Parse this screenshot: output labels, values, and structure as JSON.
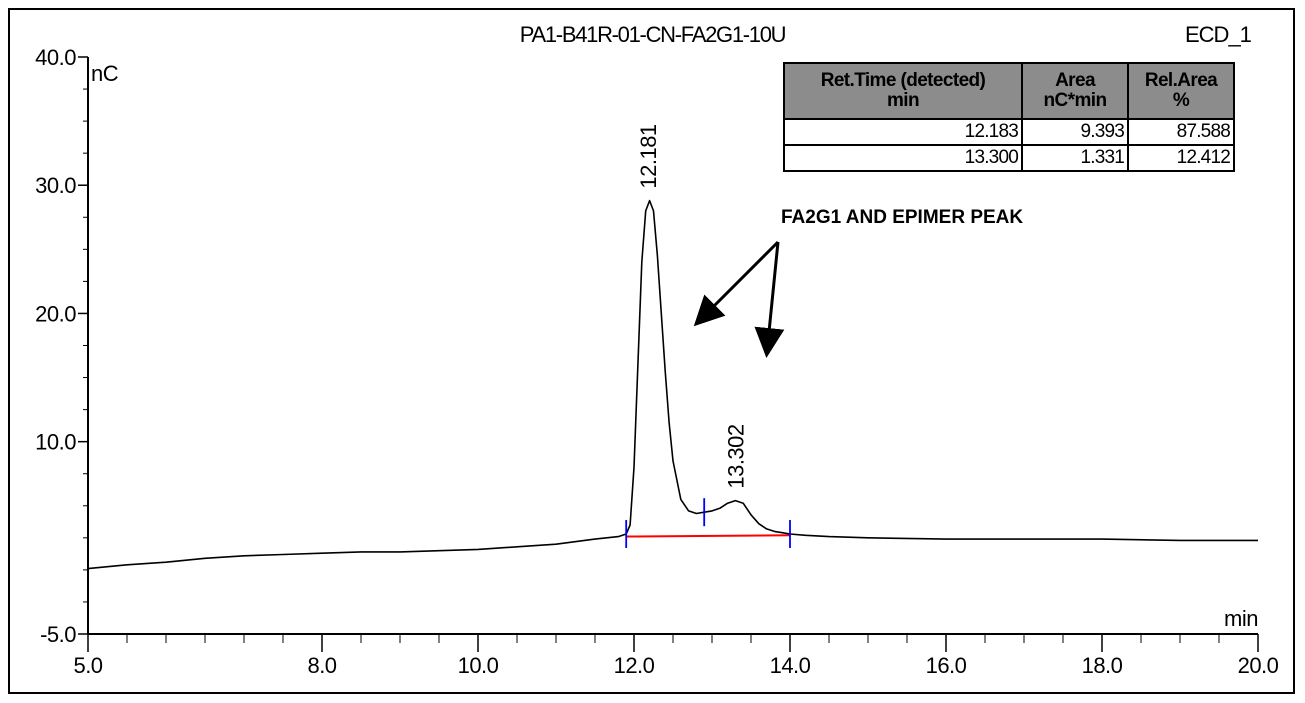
{
  "chart_data": {
    "type": "line",
    "title": "PA1-B41R-01-CN-FA2G1-10U",
    "channel": "ECD_1",
    "xlabel": "min",
    "ylabel": "nC",
    "xlim": [
      5.0,
      20.0
    ],
    "ylim": [
      -5.0,
      40.0
    ],
    "x_ticks": [
      5.0,
      8.0,
      10.0,
      12.0,
      14.0,
      16.0,
      18.0,
      20.0
    ],
    "x_tick_labels": [
      "5.0",
      "8.0",
      "10.0",
      "12.0",
      "14.0",
      "16.0",
      "18.0",
      "20.0"
    ],
    "y_ticks": [
      -5.0,
      10.0,
      20.0,
      30.0,
      40.0
    ],
    "y_tick_labels": [
      "-5.0",
      "10.0",
      "20.0",
      "30.0",
      "40.0"
    ],
    "grid": false,
    "series": [
      {
        "color": "#000000",
        "x": [
          5.0,
          5.5,
          6.0,
          6.5,
          7.0,
          7.5,
          8.0,
          8.5,
          9.0,
          9.5,
          10.0,
          10.5,
          11.0,
          11.5,
          11.8,
          11.9,
          11.95,
          12.0,
          12.05,
          12.1,
          12.15,
          12.2,
          12.25,
          12.3,
          12.35,
          12.4,
          12.45,
          12.5,
          12.6,
          12.7,
          12.8,
          12.9,
          13.0,
          13.1,
          13.2,
          13.3,
          13.4,
          13.5,
          13.6,
          13.7,
          13.8,
          13.9,
          14.0,
          14.2,
          14.5,
          15.0,
          16.0,
          17.0,
          18.0,
          19.0,
          20.0
        ],
        "y": [
          0.1,
          0.4,
          0.6,
          0.9,
          1.1,
          1.2,
          1.3,
          1.4,
          1.4,
          1.5,
          1.6,
          1.8,
          2.0,
          2.4,
          2.6,
          2.8,
          3.5,
          8.0,
          16.0,
          24.0,
          28.0,
          28.8,
          28.0,
          24.5,
          20.0,
          15.5,
          11.5,
          8.5,
          5.5,
          4.6,
          4.4,
          4.5,
          4.6,
          4.8,
          5.2,
          5.4,
          5.2,
          4.3,
          3.6,
          3.2,
          3.0,
          2.9,
          2.8,
          2.7,
          2.6,
          2.5,
          2.4,
          2.4,
          2.4,
          2.3,
          2.3
        ]
      }
    ],
    "peak_labels": [
      {
        "label": "12.181",
        "x": 12.181,
        "y": 28.8
      },
      {
        "label": "13.302",
        "x": 13.302,
        "y": 5.4
      }
    ],
    "baseline": {
      "color": "#ff0000",
      "x": [
        11.9,
        14.0
      ],
      "y": [
        2.6,
        2.7
      ]
    },
    "peak_marks": {
      "color": "#0000ff",
      "x": [
        11.9,
        12.9,
        14.0
      ]
    },
    "annotation": "FA2G1 AND EPIMER PEAK"
  },
  "results_table": {
    "headers": [
      {
        "line1": "Ret.Time (detected)",
        "line2": "min"
      },
      {
        "line1": "Area",
        "line2": "nC*min"
      },
      {
        "line1": "Rel.Area",
        "line2": "%"
      }
    ],
    "rows": [
      [
        "12.183",
        "9.393",
        "87.588"
      ],
      [
        "13.300",
        "1.331",
        "12.412"
      ]
    ]
  }
}
